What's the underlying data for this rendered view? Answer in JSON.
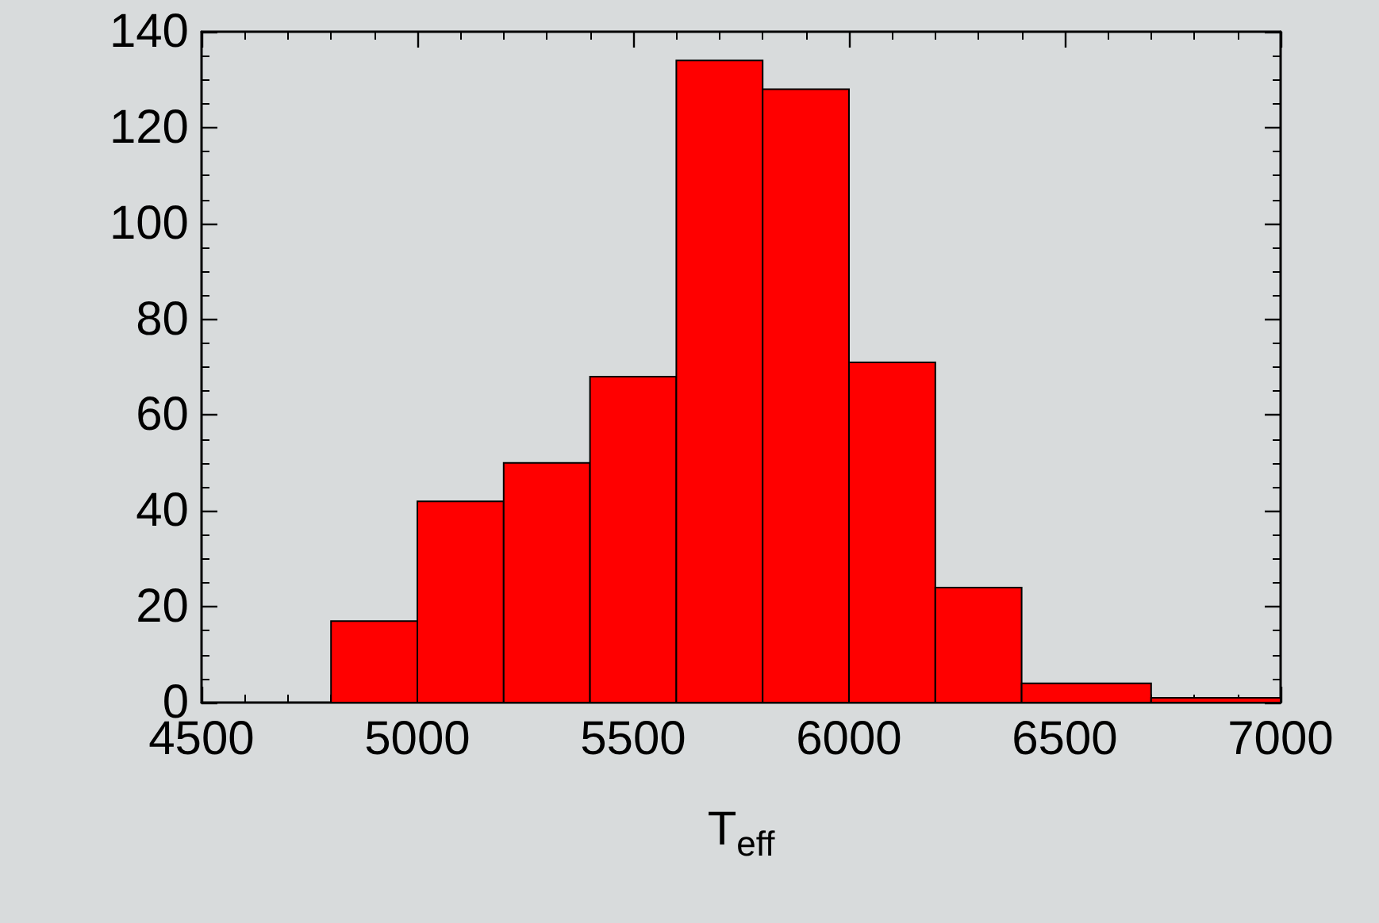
{
  "chart_data": {
    "type": "histogram",
    "xlabel": "T$_{eff}$",
    "bins": [
      4800,
      5000,
      5200,
      5400,
      5600,
      5800,
      6000,
      6200,
      6400,
      6700,
      7000
    ],
    "values": [
      17,
      42,
      50,
      68,
      134,
      128,
      71,
      24,
      4,
      1
    ],
    "color": "#ff0000",
    "xlim": [
      4500,
      7000
    ],
    "xticks": [
      4500,
      5000,
      5500,
      6000,
      6500,
      7000
    ],
    "ylim": [
      0,
      140
    ],
    "yticks": [
      0,
      20,
      40,
      60,
      80,
      100,
      120,
      140
    ],
    "grid": false
  }
}
